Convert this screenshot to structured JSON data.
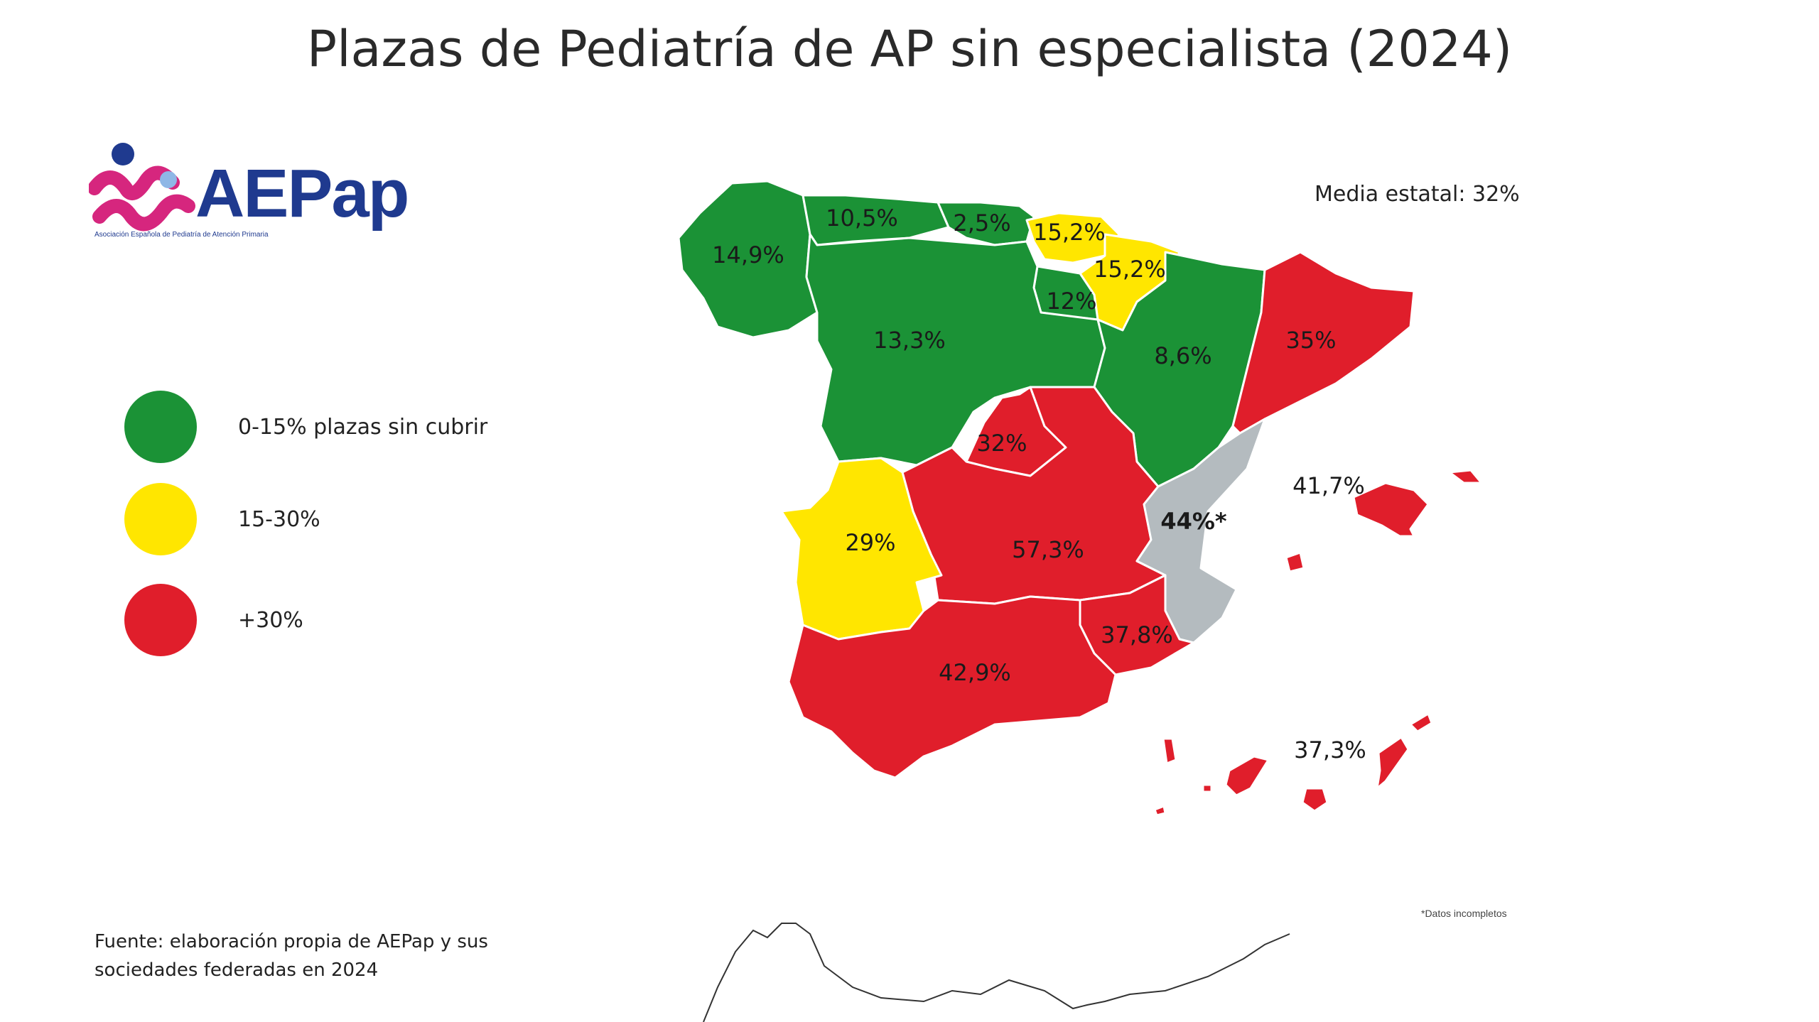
{
  "title": "Plazas de Pediatría de AP sin especialista (2024)",
  "logo": {
    "text": "AEPap",
    "subtitle": "Asociación Española de Pediatría de Atención Primaria",
    "colors": {
      "figure_pink": "#d6267e",
      "figure_blue": "#1f3a8f",
      "figure_light": "#8fb7e6"
    }
  },
  "legend": [
    {
      "label": "0-15% plazas sin cubrir",
      "color": "#1b9236"
    },
    {
      "label": "15-30%",
      "color": "#ffe600"
    },
    {
      "label": "+30%",
      "color": "#e01e2b"
    }
  ],
  "media_estatal": "Media estatal: 32%",
  "colors": {
    "green": "#1b9236",
    "yellow": "#ffe600",
    "red": "#e01e2b",
    "gray": "#b4bbbf"
  },
  "regions": [
    {
      "label": "14,9%",
      "value": 14.9,
      "category": "green"
    },
    {
      "label": "10,5%",
      "value": 10.5,
      "category": "green"
    },
    {
      "label": "2,5%",
      "value": 2.5,
      "category": "green"
    },
    {
      "label": "15,2%",
      "value": 15.2,
      "category": "yellow"
    },
    {
      "label": "15,2%",
      "value": 15.2,
      "category": "yellow"
    },
    {
      "label": "12%",
      "value": 12,
      "category": "green"
    },
    {
      "label": "13,3%",
      "value": 13.3,
      "category": "green"
    },
    {
      "label": "8,6%",
      "value": 8.6,
      "category": "green"
    },
    {
      "label": "35%",
      "value": 35,
      "category": "red"
    },
    {
      "label": "32%",
      "value": 32,
      "category": "red"
    },
    {
      "label": "29%",
      "value": 29,
      "category": "yellow"
    },
    {
      "label": "57,3%",
      "value": 57.3,
      "category": "red"
    },
    {
      "label": "44%*",
      "value": 44,
      "category": "gray"
    },
    {
      "label": "41,7%",
      "value": 41.7,
      "category": "red"
    },
    {
      "label": "37,8%",
      "value": 37.8,
      "category": "red"
    },
    {
      "label": "42,9%",
      "value": 42.9,
      "category": "red"
    },
    {
      "label": "37,3%",
      "value": 37.3,
      "category": "red"
    }
  ],
  "source": {
    "line1": "Fuente: elaboración propia de AEPap y sus",
    "line2": "sociedades federadas en 2024"
  },
  "note": "*Datos incompletos"
}
